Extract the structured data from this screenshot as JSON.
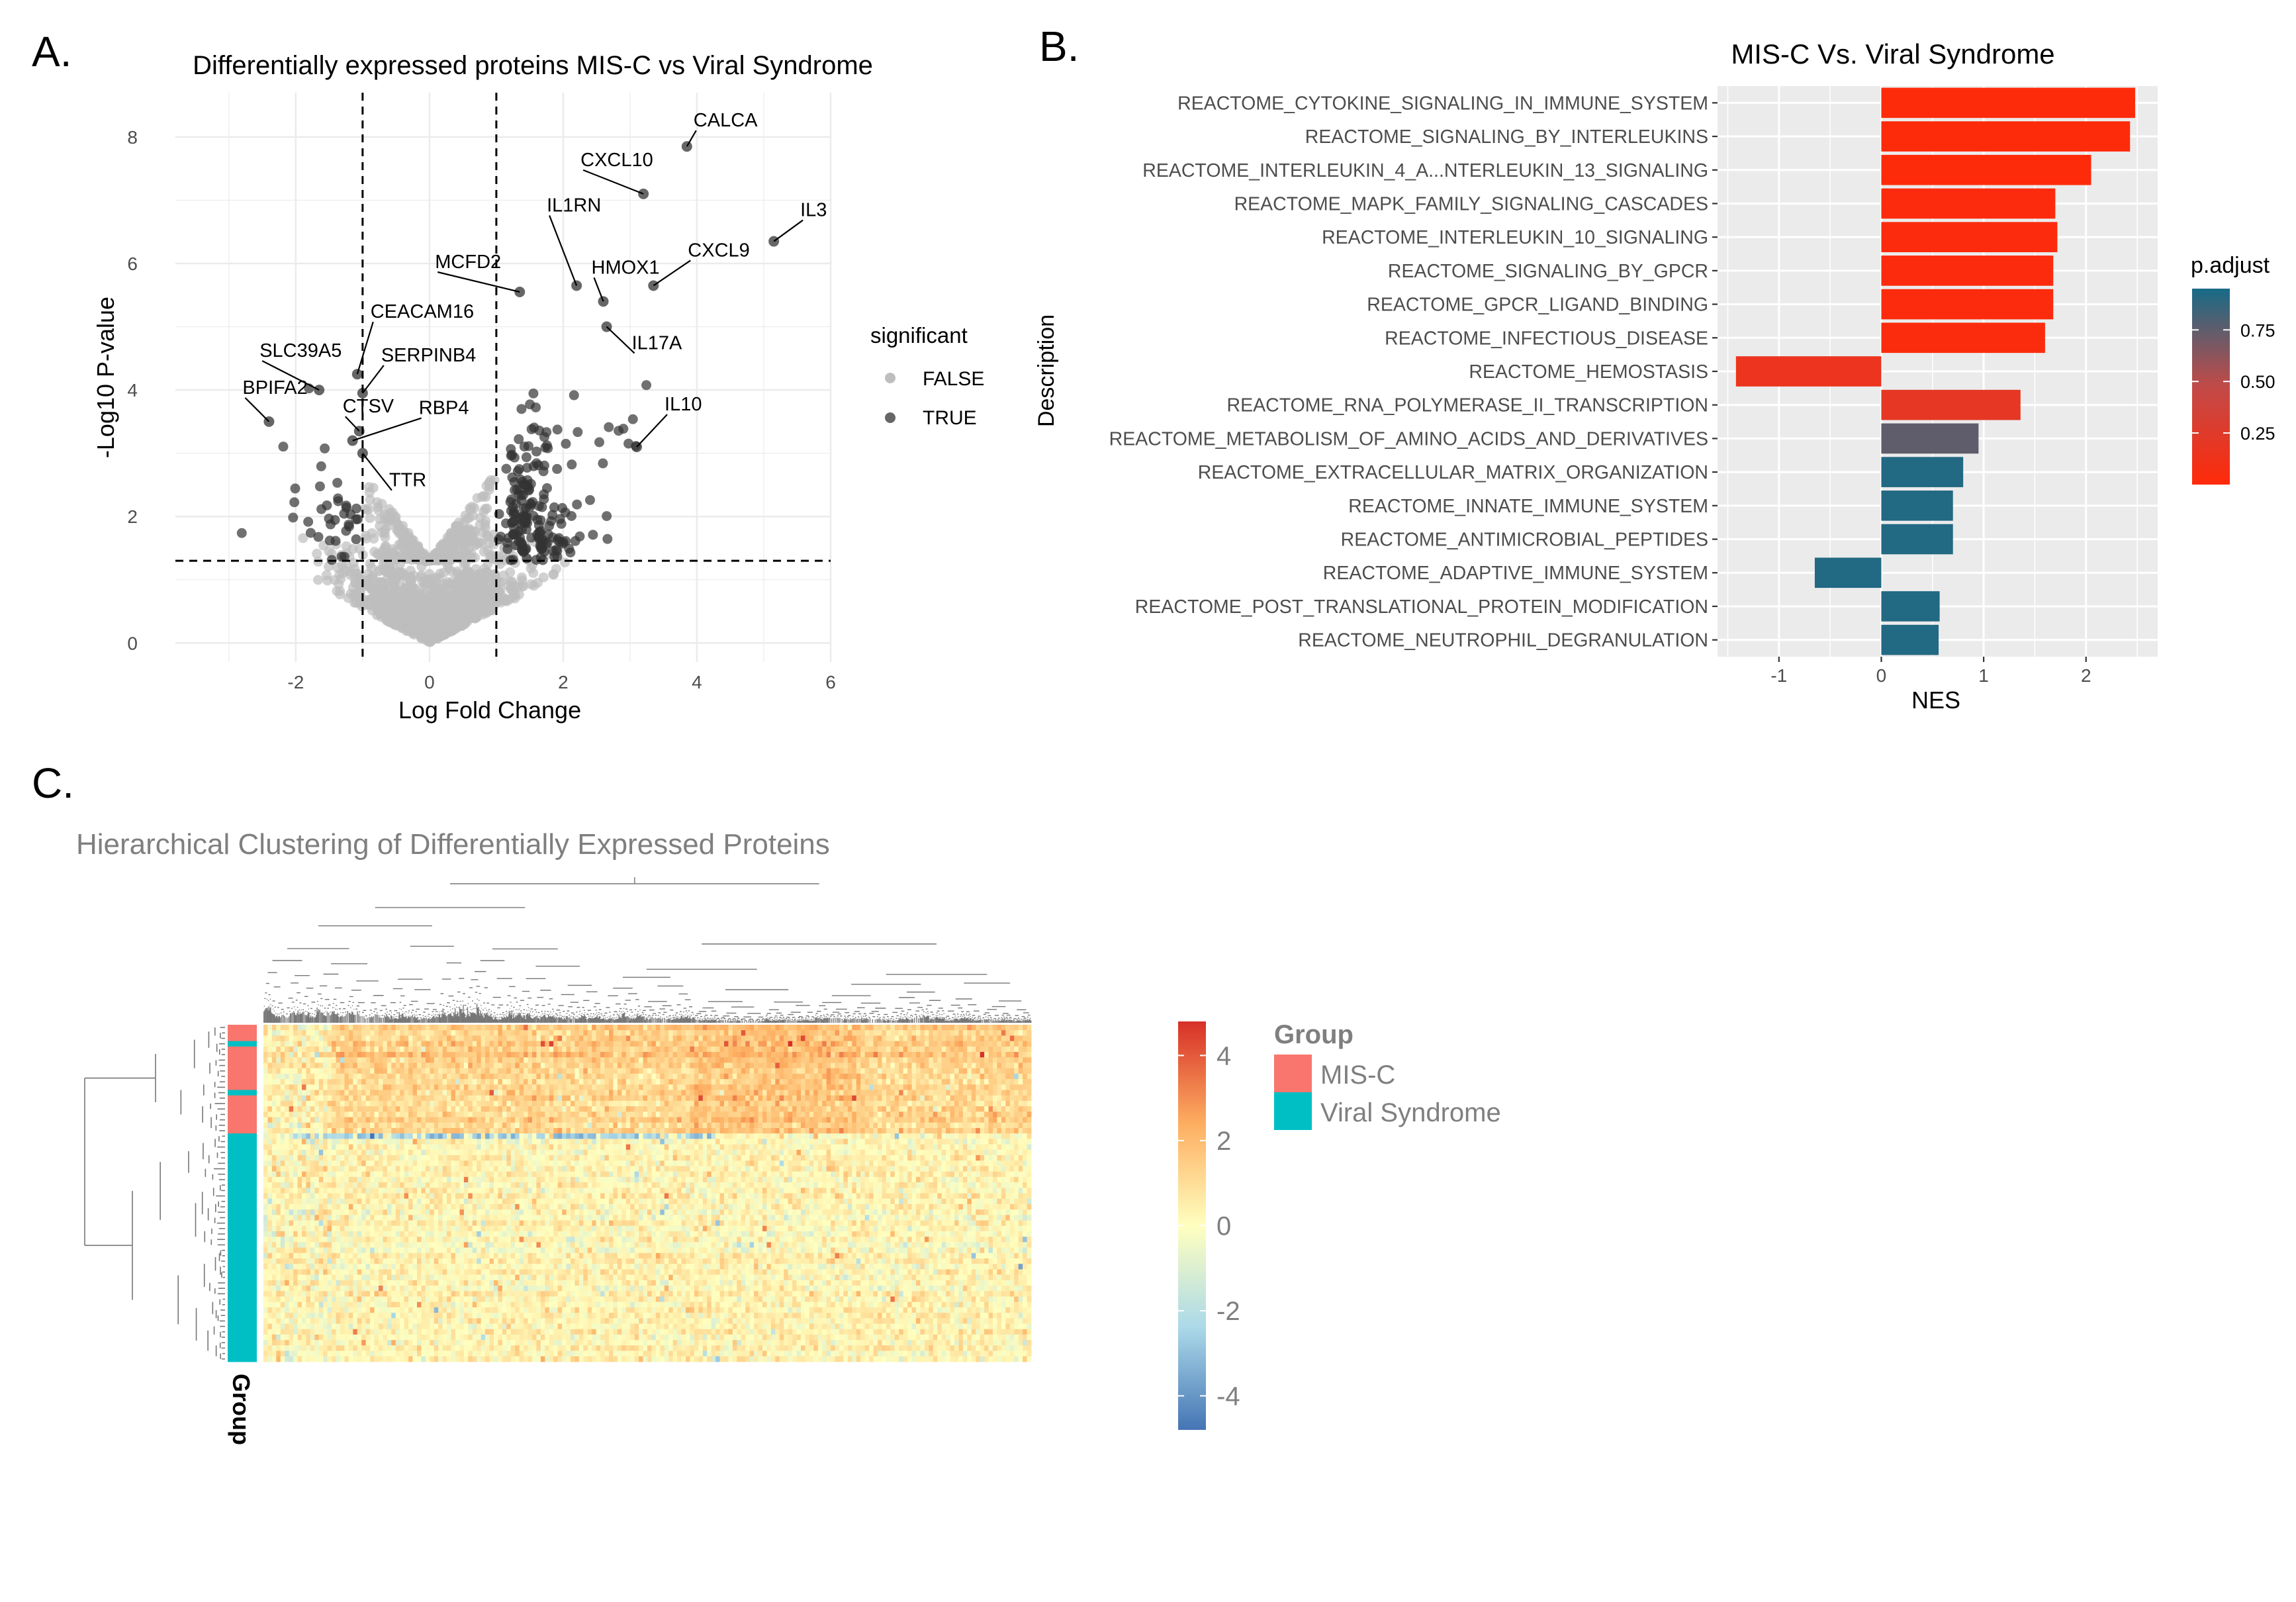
{
  "panel_labels": {
    "a": "A.",
    "b": "B.",
    "c": "C."
  },
  "colors": {
    "grid_bg": "#EBEBEB",
    "nonsig": "#BEBEBE",
    "sig": "#333333",
    "misc": "#F8766D",
    "viral": "#00BFC4",
    "padj_low": "#FF2A0A",
    "padj_mid": "#D8513A",
    "padj_high": "#176B87"
  },
  "chart_data": [
    {
      "type": "scatter",
      "title": "Differentially expressed proteins MIS-C vs Viral Syndrome",
      "xlabel": "Log Fold Change",
      "ylabel": "-Log10 P-value",
      "xlim": [
        -3.8,
        6.0
      ],
      "ylim": [
        -0.3,
        8.7
      ],
      "xticks": [
        -2,
        0,
        2,
        4,
        6
      ],
      "yticks": [
        0,
        2,
        4,
        6,
        8
      ],
      "thresholds": {
        "x": [
          -1,
          1
        ],
        "y": 1.3
      },
      "legend": {
        "title": "significant",
        "false_label": "FALSE",
        "true_label": "TRUE",
        "placement": "right"
      },
      "labeled_points": [
        {
          "label": "CALCA",
          "x": 3.85,
          "y": 7.85
        },
        {
          "label": "CXCL10",
          "x": 3.2,
          "y": 7.1
        },
        {
          "label": "IL3",
          "x": 5.15,
          "y": 6.35
        },
        {
          "label": "IL1RN",
          "x": 2.2,
          "y": 5.65
        },
        {
          "label": "MCFD2",
          "x": 1.35,
          "y": 5.55
        },
        {
          "label": "HMOX1",
          "x": 2.6,
          "y": 5.4
        },
        {
          "label": "CXCL9",
          "x": 3.35,
          "y": 5.65
        },
        {
          "label": "IL17A",
          "x": 2.65,
          "y": 5.0
        },
        {
          "label": "IL10",
          "x": 3.1,
          "y": 3.1
        },
        {
          "label": "CEACAM16",
          "x": -1.08,
          "y": 4.25
        },
        {
          "label": "SERPINB4",
          "x": -1.0,
          "y": 3.95
        },
        {
          "label": "SLC39A5",
          "x": -1.65,
          "y": 4.0
        },
        {
          "label": "BPIFA2",
          "x": -2.4,
          "y": 3.5
        },
        {
          "label": "CTSV",
          "x": -1.05,
          "y": 3.35
        },
        {
          "label": "RBP4",
          "x": -1.15,
          "y": 3.2
        },
        {
          "label": "TTR",
          "x": -1.0,
          "y": 3.0
        }
      ]
    },
    {
      "type": "bar",
      "title": "MIS-C Vs. Viral Syndrome",
      "xlabel": "NES",
      "ylabel": "Description",
      "xlim": [
        -1.6,
        2.7
      ],
      "xticks": [
        -1,
        0,
        1,
        2
      ],
      "legend": {
        "title": "p.adjust",
        "ticks": [
          0.25,
          0.5,
          0.75
        ],
        "range": [
          0.0,
          0.95
        ]
      },
      "categories": [
        "REACTOME_CYTOKINE_SIGNALING_IN_IMMUNE_SYSTEM",
        "REACTOME_SIGNALING_BY_INTERLEUKINS",
        "REACTOME_INTERLEUKIN_4_A...NTERLEUKIN_13_SIGNALING",
        "REACTOME_MAPK_FAMILY_SIGNALING_CASCADES",
        "REACTOME_INTERLEUKIN_10_SIGNALING",
        "REACTOME_SIGNALING_BY_GPCR",
        "REACTOME_GPCR_LIGAND_BINDING",
        "REACTOME_INFECTIOUS_DISEASE",
        "REACTOME_HEMOSTASIS",
        "REACTOME_RNA_POLYMERASE_II_TRANSCRIPTION",
        "REACTOME_METABOLISM_OF_AMINO_ACIDS_AND_DERIVATIVES",
        "REACTOME_EXTRACELLULAR_MATRIX_ORGANIZATION",
        "REACTOME_INNATE_IMMUNE_SYSTEM",
        "REACTOME_ANTIMICROBIAL_PEPTIDES",
        "REACTOME_ADAPTIVE_IMMUNE_SYSTEM",
        "REACTOME_POST_TRANSLATIONAL_PROTEIN_MODIFICATION",
        "REACTOME_NEUTROPHIL_DEGRANULATION"
      ],
      "values": [
        2.48,
        2.43,
        2.05,
        1.7,
        1.72,
        1.68,
        1.68,
        1.6,
        -1.42,
        1.36,
        0.95,
        0.8,
        0.7,
        0.7,
        -0.65,
        0.57,
        0.56
      ],
      "p_adjust": [
        0.01,
        0.01,
        0.01,
        0.02,
        0.02,
        0.02,
        0.02,
        0.03,
        0.15,
        0.2,
        0.75,
        0.92,
        0.92,
        0.92,
        0.92,
        0.92,
        0.92
      ]
    },
    {
      "type": "heatmap",
      "title": "Hierarchical Clustering of Differentially Expressed Proteins",
      "colorbar": {
        "ticks": [
          4,
          2,
          0,
          -2,
          -4
        ],
        "range": [
          -4.8,
          4.8
        ]
      },
      "group_label": "Group",
      "legend": {
        "title": "Group",
        "labels": [
          "MIS-C",
          "Viral Syndrome"
        ]
      },
      "row_groups": [
        "MIS-C",
        "MIS-C",
        "MIS-C",
        "Viral Syndrome",
        "MIS-C",
        "MIS-C",
        "MIS-C",
        "MIS-C",
        "MIS-C",
        "MIS-C",
        "MIS-C",
        "MIS-C",
        "Viral Syndrome",
        "MIS-C",
        "MIS-C",
        "MIS-C",
        "MIS-C",
        "MIS-C",
        "MIS-C",
        "MIS-C",
        "Viral Syndrome",
        "Viral Syndrome",
        "Viral Syndrome",
        "Viral Syndrome",
        "Viral Syndrome",
        "Viral Syndrome",
        "Viral Syndrome",
        "Viral Syndrome",
        "Viral Syndrome",
        "Viral Syndrome",
        "Viral Syndrome",
        "Viral Syndrome",
        "Viral Syndrome",
        "Viral Syndrome",
        "Viral Syndrome",
        "Viral Syndrome",
        "Viral Syndrome",
        "Viral Syndrome",
        "Viral Syndrome",
        "Viral Syndrome",
        "Viral Syndrome",
        "Viral Syndrome",
        "Viral Syndrome",
        "Viral Syndrome",
        "Viral Syndrome",
        "Viral Syndrome",
        "Viral Syndrome",
        "Viral Syndrome",
        "Viral Syndrome",
        "Viral Syndrome",
        "Viral Syndrome",
        "Viral Syndrome",
        "Viral Syndrome",
        "Viral Syndrome",
        "Viral Syndrome",
        "Viral Syndrome",
        "Viral Syndrome",
        "Viral Syndrome",
        "Viral Syndrome",
        "Viral Syndrome",
        "Viral Syndrome",
        "Viral Syndrome"
      ],
      "n_columns": 180
    }
  ]
}
